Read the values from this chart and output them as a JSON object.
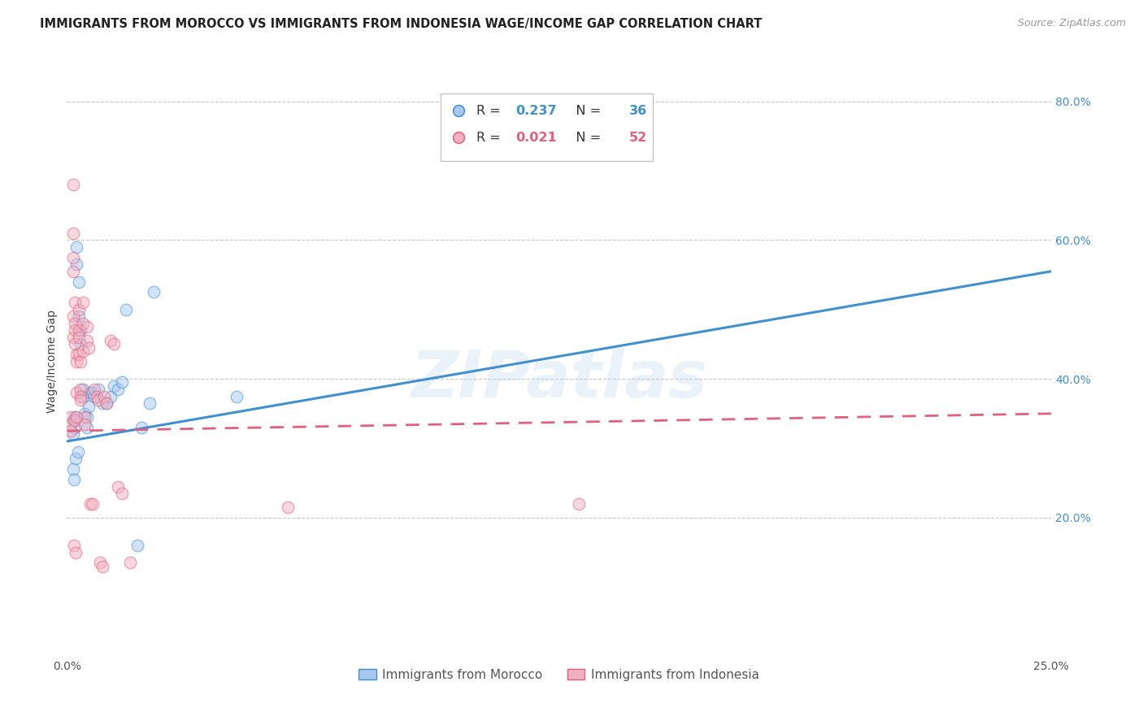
{
  "title": "IMMIGRANTS FROM MOROCCO VS IMMIGRANTS FROM INDONESIA WAGE/INCOME GAP CORRELATION CHART",
  "source": "Source: ZipAtlas.com",
  "ylabel": "Wage/Income Gap",
  "xmin": 0.0,
  "xmax": 0.25,
  "ymin": 0.0,
  "ymax": 0.85,
  "yticks_right": [
    0.2,
    0.4,
    0.6,
    0.8
  ],
  "xticks": [
    0.0,
    0.25
  ],
  "grid_color": "#c8c8c8",
  "morocco_color": "#a8c8f0",
  "indonesia_color": "#f0b0c0",
  "morocco_line_color": "#4090d0",
  "indonesia_line_color": "#e06080",
  "morocco_R": 0.237,
  "morocco_N": 36,
  "indonesia_R": 0.021,
  "indonesia_N": 52,
  "watermark": "ZIPatlas",
  "morocco_scatter_x": [
    0.0015,
    0.0015,
    0.002,
    0.002,
    0.0025,
    0.0025,
    0.003,
    0.003,
    0.0035,
    0.0035,
    0.004,
    0.004,
    0.0045,
    0.005,
    0.005,
    0.0055,
    0.006,
    0.0065,
    0.007,
    0.008,
    0.009,
    0.01,
    0.011,
    0.012,
    0.013,
    0.014,
    0.015,
    0.018,
    0.019,
    0.021,
    0.022,
    0.043,
    0.0015,
    0.0018,
    0.0022,
    0.0028
  ],
  "morocco_scatter_y": [
    0.34,
    0.32,
    0.345,
    0.33,
    0.59,
    0.565,
    0.54,
    0.49,
    0.47,
    0.45,
    0.385,
    0.375,
    0.35,
    0.345,
    0.33,
    0.36,
    0.38,
    0.38,
    0.375,
    0.385,
    0.365,
    0.365,
    0.375,
    0.39,
    0.385,
    0.395,
    0.5,
    0.16,
    0.33,
    0.365,
    0.525,
    0.375,
    0.27,
    0.255,
    0.285,
    0.295
  ],
  "indonesia_scatter_x": [
    0.001,
    0.001,
    0.001,
    0.0015,
    0.0015,
    0.0015,
    0.0015,
    0.0015,
    0.0015,
    0.002,
    0.002,
    0.002,
    0.002,
    0.0025,
    0.0025,
    0.0025,
    0.003,
    0.003,
    0.003,
    0.003,
    0.0035,
    0.0035,
    0.0035,
    0.0035,
    0.004,
    0.004,
    0.004,
    0.0045,
    0.0045,
    0.005,
    0.005,
    0.0055,
    0.006,
    0.0065,
    0.007,
    0.0075,
    0.008,
    0.0085,
    0.009,
    0.0095,
    0.01,
    0.011,
    0.012,
    0.013,
    0.014,
    0.016,
    0.002,
    0.0025,
    0.056,
    0.13,
    0.0018,
    0.0022
  ],
  "indonesia_scatter_y": [
    0.345,
    0.335,
    0.325,
    0.68,
    0.61,
    0.575,
    0.555,
    0.49,
    0.46,
    0.51,
    0.48,
    0.47,
    0.45,
    0.435,
    0.425,
    0.38,
    0.5,
    0.47,
    0.46,
    0.435,
    0.425,
    0.385,
    0.375,
    0.37,
    0.51,
    0.48,
    0.44,
    0.345,
    0.335,
    0.475,
    0.455,
    0.445,
    0.22,
    0.22,
    0.385,
    0.375,
    0.37,
    0.135,
    0.13,
    0.375,
    0.365,
    0.455,
    0.45,
    0.245,
    0.235,
    0.135,
    0.34,
    0.345,
    0.215,
    0.22,
    0.16,
    0.15
  ],
  "morocco_trend_x": [
    0.0,
    0.25
  ],
  "morocco_trend_y": [
    0.31,
    0.555
  ],
  "indonesia_trend_x": [
    0.0,
    0.25
  ],
  "indonesia_trend_y": [
    0.325,
    0.35
  ],
  "title_fontsize": 10.5,
  "axis_label_fontsize": 10,
  "tick_fontsize": 10,
  "source_fontsize": 9,
  "dot_size": 110,
  "dot_alpha": 0.5,
  "dot_linewidth": 1.0
}
